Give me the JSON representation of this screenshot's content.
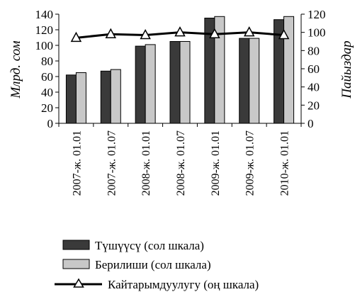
{
  "chart_data": {
    "type": "bar",
    "title": "",
    "categories": [
      "2007-ж. 01.01",
      "2007-ж. 01.07",
      "2008-ж. 01.01",
      "2008-ж. 01.07",
      "2009-ж. 01.01",
      "2009-ж. 01.07",
      "2010-ж. 01.01"
    ],
    "ylabel_left": "Млрд. сом",
    "ylabel_right": "Пайыздар",
    "ylim_left": [
      0,
      140
    ],
    "ylim_right": [
      0,
      120
    ],
    "yticks_left": [
      "0",
      "20",
      "40",
      "60",
      "80",
      "100",
      "120",
      "140"
    ],
    "yticks_right": [
      "0",
      "20",
      "40",
      "60",
      "80",
      "100",
      "120"
    ],
    "series": [
      {
        "name": "Түшүүсү (сол шкала)",
        "type": "bar",
        "axis": "left",
        "color": "#3a3a3a",
        "values": [
          62,
          67,
          99,
          105,
          135,
          109,
          133
        ]
      },
      {
        "name": "Берилиши (сол шкала)",
        "type": "bar",
        "axis": "left",
        "color": "#c8c8c8",
        "values": [
          65,
          69,
          101,
          105,
          137,
          109,
          137
        ]
      },
      {
        "name": "Кайтарымдуулугу (оң шкала)",
        "type": "line",
        "axis": "right",
        "color": "#000000",
        "marker": "triangle",
        "values": [
          94,
          98,
          97,
          100,
          98,
          100,
          97
        ]
      }
    ],
    "legend_position": "bottom",
    "grid": false
  }
}
